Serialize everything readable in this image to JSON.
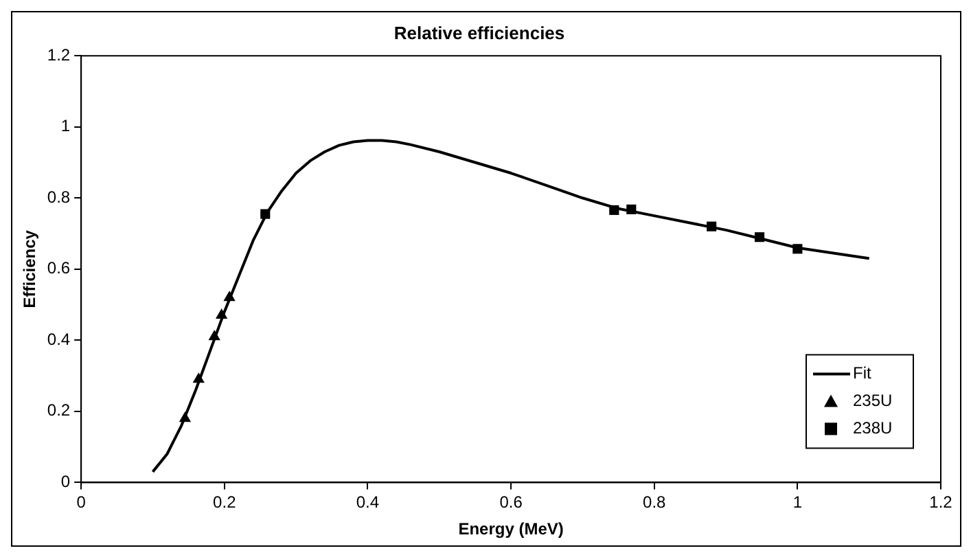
{
  "chart_data": {
    "type": "scatter",
    "title": "Relative efficiencies",
    "xlabel": "Energy (MeV)",
    "ylabel": "Efficiency",
    "xlim": [
      0,
      1.2
    ],
    "xticks": [
      0,
      0.2,
      0.4,
      0.6,
      0.8,
      1,
      1.2
    ],
    "ylim": [
      0,
      1.2
    ],
    "yticks": [
      0,
      0.2,
      0.4,
      0.6,
      0.8,
      1,
      1.2
    ],
    "grid": false,
    "legend": "bottom right",
    "series": [
      {
        "name": "Fit",
        "type": "line",
        "marker": "none",
        "line_style": "solid",
        "color": "#000000",
        "x": [
          0.1,
          0.12,
          0.14,
          0.16,
          0.18,
          0.2,
          0.22,
          0.24,
          0.26,
          0.28,
          0.3,
          0.32,
          0.34,
          0.36,
          0.38,
          0.4,
          0.42,
          0.44,
          0.46,
          0.5,
          0.55,
          0.6,
          0.65,
          0.7,
          0.75,
          0.8,
          0.85,
          0.9,
          0.95,
          1.0,
          1.05,
          1.1
        ],
        "values": [
          0.03,
          0.08,
          0.16,
          0.26,
          0.37,
          0.48,
          0.58,
          0.68,
          0.76,
          0.82,
          0.87,
          0.905,
          0.93,
          0.948,
          0.958,
          0.962,
          0.962,
          0.958,
          0.95,
          0.93,
          0.9,
          0.87,
          0.835,
          0.8,
          0.77,
          0.75,
          0.73,
          0.71,
          0.685,
          0.66,
          0.645,
          0.63
        ]
      },
      {
        "name": "235U",
        "type": "scatter",
        "marker": "triangle",
        "color": "#000000",
        "x": [
          0.145,
          0.164,
          0.186,
          0.196,
          0.207
        ],
        "values": [
          0.18,
          0.29,
          0.41,
          0.47,
          0.52
        ]
      },
      {
        "name": "238U",
        "type": "scatter",
        "marker": "square",
        "color": "#000000",
        "x": [
          0.257,
          0.744,
          0.768,
          0.88,
          0.947,
          1.0
        ],
        "values": [
          0.755,
          0.766,
          0.768,
          0.72,
          0.69,
          0.657
        ]
      }
    ]
  }
}
